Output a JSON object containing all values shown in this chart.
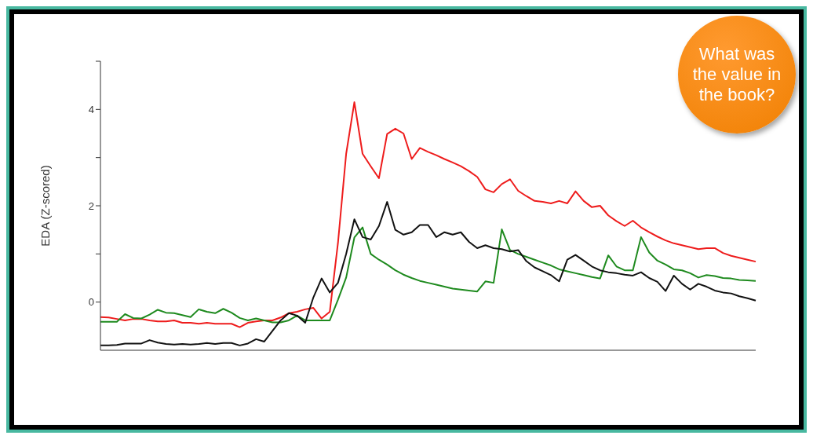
{
  "chart_data": {
    "type": "line",
    "ylabel": "EDA (Z-scored)",
    "categories": [
      null,
      null,
      null,
      null,
      null,
      null,
      null,
      null,
      null,
      null,
      null,
      null,
      null,
      null,
      null,
      null,
      null,
      null,
      null,
      null,
      null,
      null,
      null,
      null,
      null,
      null,
      null,
      null,
      null,
      null,
      null,
      null,
      null,
      null,
      null,
      null,
      null,
      null,
      null,
      null,
      null,
      null,
      null,
      null,
      null,
      null,
      null,
      null,
      null,
      null,
      null,
      null,
      null,
      null,
      null,
      null,
      null,
      null,
      null,
      null,
      null,
      null,
      null,
      null,
      null,
      null,
      null,
      null,
      null,
      null,
      null,
      null,
      null,
      null,
      null,
      null,
      null,
      null,
      null,
      null,
      null
    ],
    "ylim": [
      -1,
      5
    ],
    "yticks": [
      0,
      {
        "value": 1,
        "label": null
      },
      2,
      {
        "value": 3,
        "label": null
      },
      4,
      {
        "value": 5,
        "label": null
      }
    ],
    "grid": false,
    "legend": false,
    "marker": "none",
    "line_style": "solid",
    "annotations": [
      "What was the value in the book?"
    ],
    "series": [
      {
        "color": "#ee1c1c",
        "values": [
          -0.31,
          -0.32,
          -0.35,
          -0.38,
          -0.35,
          -0.35,
          -0.38,
          -0.4,
          -0.4,
          -0.38,
          -0.43,
          -0.43,
          -0.45,
          -0.43,
          -0.45,
          -0.45,
          -0.45,
          -0.52,
          -0.43,
          -0.4,
          -0.38,
          -0.38,
          -0.32,
          -0.23,
          -0.2,
          -0.15,
          -0.12,
          -0.34,
          -0.2,
          1.23,
          3.08,
          4.15,
          3.08,
          2.82,
          2.57,
          3.49,
          3.6,
          3.5,
          2.97,
          3.2,
          3.12,
          3.05,
          2.97,
          2.9,
          2.82,
          2.72,
          2.6,
          2.34,
          2.28,
          2.45,
          2.55,
          2.31,
          2.2,
          2.1,
          2.08,
          2.05,
          2.1,
          2.05,
          2.3,
          2.1,
          1.97,
          2.0,
          1.8,
          1.68,
          1.58,
          1.69,
          1.55,
          1.45,
          1.36,
          1.28,
          1.22,
          1.18,
          1.14,
          1.1,
          1.12,
          1.12,
          1.02,
          0.96,
          0.92,
          0.88,
          0.84
        ]
      },
      {
        "color": "#1e8a1e",
        "values": [
          -0.41,
          -0.41,
          -0.41,
          -0.25,
          -0.33,
          -0.34,
          -0.26,
          -0.16,
          -0.22,
          -0.23,
          -0.27,
          -0.31,
          -0.15,
          -0.2,
          -0.23,
          -0.14,
          -0.22,
          -0.33,
          -0.38,
          -0.34,
          -0.38,
          -0.42,
          -0.42,
          -0.38,
          -0.28,
          -0.38,
          -0.38,
          -0.38,
          -0.38,
          0.05,
          0.51,
          1.34,
          1.55,
          1.0,
          0.88,
          0.78,
          0.66,
          0.57,
          0.5,
          0.44,
          0.4,
          0.36,
          0.32,
          0.28,
          0.26,
          0.24,
          0.22,
          0.43,
          0.4,
          1.51,
          1.08,
          1.0,
          0.94,
          0.88,
          0.82,
          0.76,
          0.68,
          0.64,
          0.6,
          0.56,
          0.52,
          0.49,
          0.97,
          0.74,
          0.66,
          0.66,
          1.35,
          1.03,
          0.86,
          0.78,
          0.68,
          0.66,
          0.6,
          0.51,
          0.56,
          0.54,
          0.5,
          0.49,
          0.46,
          0.45,
          0.44
        ]
      },
      {
        "color": "#111111",
        "values": [
          -0.9,
          -0.9,
          -0.89,
          -0.86,
          -0.86,
          -0.86,
          -0.79,
          -0.84,
          -0.87,
          -0.88,
          -0.87,
          -0.88,
          -0.87,
          -0.85,
          -0.87,
          -0.85,
          -0.85,
          -0.9,
          -0.86,
          -0.77,
          -0.82,
          -0.6,
          -0.38,
          -0.23,
          -0.28,
          -0.43,
          0.1,
          0.49,
          0.2,
          0.4,
          1.0,
          1.72,
          1.35,
          1.3,
          1.58,
          2.08,
          1.5,
          1.4,
          1.45,
          1.6,
          1.6,
          1.35,
          1.45,
          1.4,
          1.45,
          1.25,
          1.12,
          1.18,
          1.12,
          1.1,
          1.05,
          1.08,
          0.85,
          0.72,
          0.64,
          0.56,
          0.43,
          0.88,
          0.98,
          0.86,
          0.74,
          0.66,
          0.62,
          0.6,
          0.57,
          0.55,
          0.62,
          0.5,
          0.42,
          0.23,
          0.55,
          0.38,
          0.26,
          0.38,
          0.32,
          0.24,
          0.2,
          0.18,
          0.12,
          0.08,
          0.03
        ]
      }
    ]
  }
}
